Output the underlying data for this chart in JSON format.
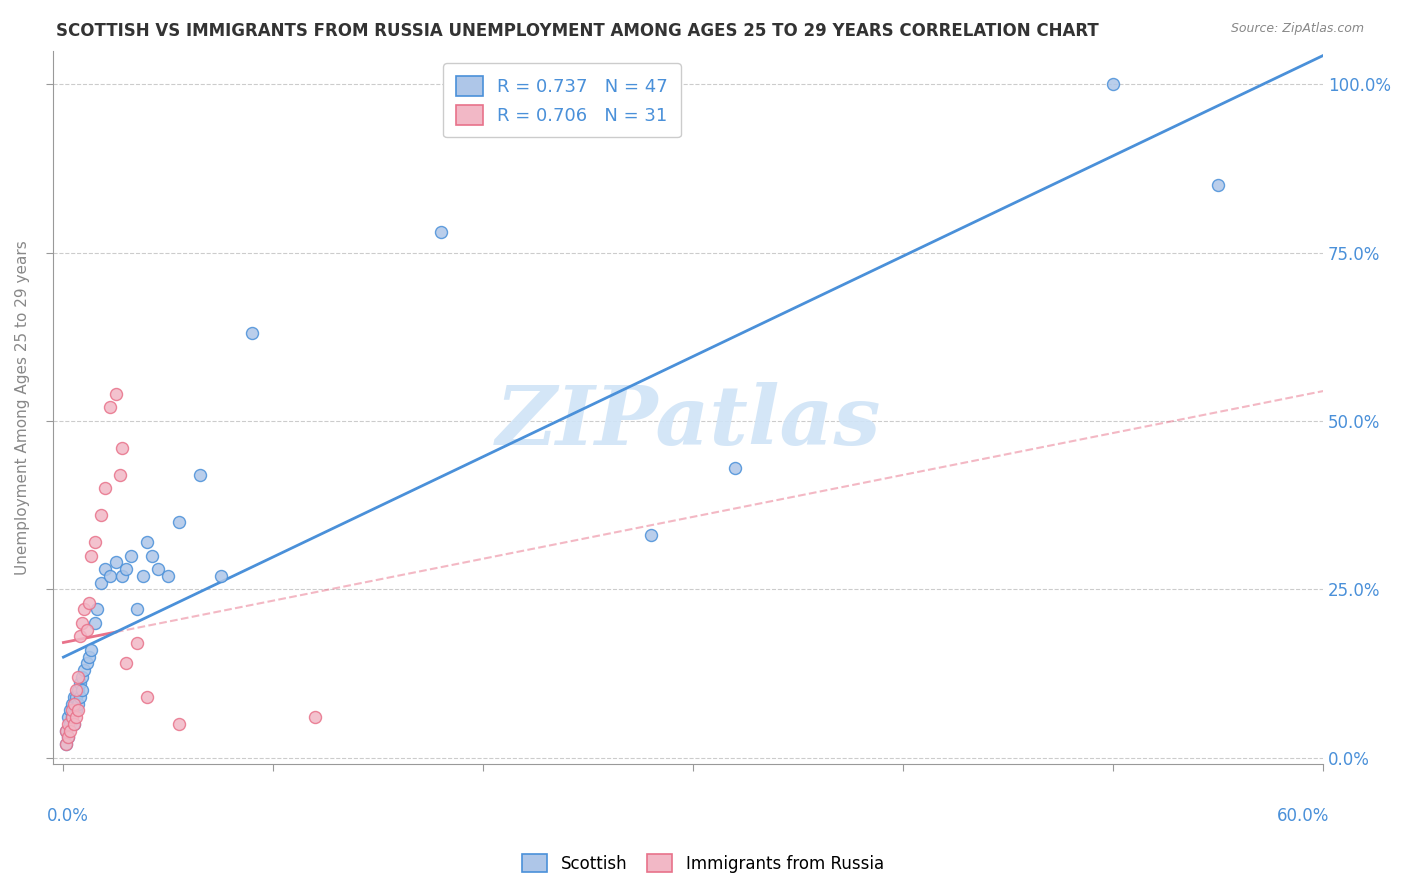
{
  "title": "SCOTTISH VS IMMIGRANTS FROM RUSSIA UNEMPLOYMENT AMONG AGES 25 TO 29 YEARS CORRELATION CHART",
  "source": "Source: ZipAtlas.com",
  "ylabel": "Unemployment Among Ages 25 to 29 years",
  "right_ytick_vals": [
    0.0,
    0.25,
    0.5,
    0.75,
    1.0
  ],
  "scottish_color": "#aec6e8",
  "russia_color": "#f2b8c6",
  "scottish_line_color": "#4a90d9",
  "russia_line_color": "#e8728a",
  "watermark_color": "#d0e4f7",
  "scottish_x": [
    0.001,
    0.001,
    0.002,
    0.002,
    0.003,
    0.003,
    0.004,
    0.004,
    0.005,
    0.005,
    0.005,
    0.006,
    0.006,
    0.007,
    0.007,
    0.008,
    0.008,
    0.009,
    0.009,
    0.01,
    0.011,
    0.012,
    0.013,
    0.015,
    0.016,
    0.018,
    0.02,
    0.022,
    0.025,
    0.028,
    0.03,
    0.032,
    0.035,
    0.038,
    0.04,
    0.042,
    0.045,
    0.05,
    0.055,
    0.065,
    0.075,
    0.09,
    0.18,
    0.28,
    0.32,
    0.5,
    0.55
  ],
  "scottish_y": [
    0.02,
    0.04,
    0.03,
    0.06,
    0.05,
    0.07,
    0.06,
    0.08,
    0.05,
    0.07,
    0.09,
    0.07,
    0.09,
    0.08,
    0.1,
    0.09,
    0.11,
    0.1,
    0.12,
    0.13,
    0.14,
    0.15,
    0.16,
    0.2,
    0.22,
    0.26,
    0.28,
    0.27,
    0.29,
    0.27,
    0.28,
    0.3,
    0.22,
    0.27,
    0.32,
    0.3,
    0.28,
    0.27,
    0.35,
    0.42,
    0.27,
    0.63,
    0.78,
    0.33,
    0.43,
    1.0,
    0.85
  ],
  "russia_x": [
    0.001,
    0.001,
    0.002,
    0.002,
    0.003,
    0.004,
    0.004,
    0.005,
    0.005,
    0.006,
    0.006,
    0.007,
    0.007,
    0.008,
    0.009,
    0.01,
    0.011,
    0.012,
    0.013,
    0.015,
    0.018,
    0.02,
    0.022,
    0.025,
    0.027,
    0.028,
    0.03,
    0.035,
    0.04,
    0.055,
    0.12
  ],
  "russia_y": [
    0.02,
    0.04,
    0.03,
    0.05,
    0.04,
    0.06,
    0.07,
    0.05,
    0.08,
    0.06,
    0.1,
    0.07,
    0.12,
    0.18,
    0.2,
    0.22,
    0.19,
    0.23,
    0.3,
    0.32,
    0.36,
    0.4,
    0.52,
    0.54,
    0.42,
    0.46,
    0.14,
    0.17,
    0.09,
    0.05,
    0.06
  ],
  "xlim": [
    0.0,
    0.6
  ],
  "ylim": [
    0.0,
    1.05
  ],
  "xtick_positions": [
    0.0,
    0.1,
    0.2,
    0.3,
    0.4,
    0.5,
    0.6
  ],
  "ytick_positions": [
    0.0,
    0.25,
    0.5,
    0.75,
    1.0
  ]
}
